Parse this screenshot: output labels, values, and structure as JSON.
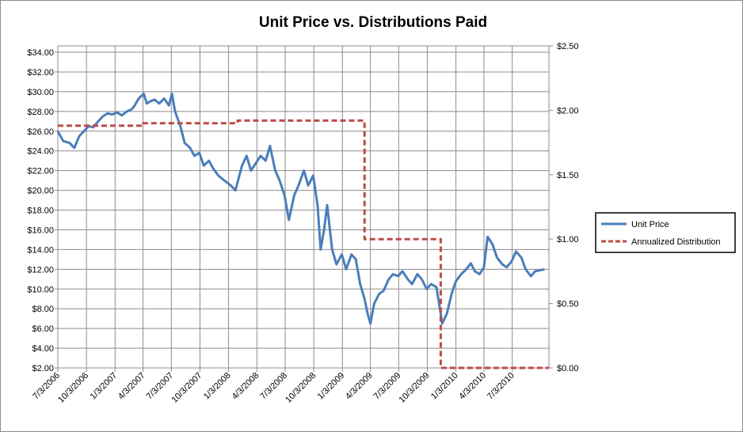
{
  "chart_data": {
    "type": "line",
    "title": "Unit Price vs. Distributions Paid",
    "xlabel": "",
    "ylabel": "",
    "y2label": "",
    "grid": true,
    "legend_position": "right",
    "x_ticks": [
      "7/3/2006",
      "10/3/2006",
      "1/3/2007",
      "4/3/2007",
      "7/3/2007",
      "10/3/2007",
      "1/3/2008",
      "4/3/2008",
      "7/3/2008",
      "10/3/2008",
      "1/3/2009",
      "4/3/2009",
      "7/3/2009",
      "10/3/2009",
      "1/3/2010",
      "4/3/2010",
      "7/3/2010"
    ],
    "x_range": [
      "7/3/2006",
      "10/29/2010"
    ],
    "y_left": {
      "min": 2,
      "max": 34,
      "step": 2,
      "ticks": [
        "$2.00",
        "$4.00",
        "$6.00",
        "$8.00",
        "$10.00",
        "$12.00",
        "$14.00",
        "$16.00",
        "$18.00",
        "$20.00",
        "$22.00",
        "$24.00",
        "$26.00",
        "$28.00",
        "$30.00",
        "$32.00",
        "$34.00"
      ]
    },
    "y_right": {
      "min": 0,
      "max": 2.5,
      "step": 0.5,
      "ticks": [
        "$0.00",
        "$0.50",
        "$1.00",
        "$1.50",
        "$2.00",
        "$2.50"
      ]
    },
    "series": [
      {
        "name": "Unit Price",
        "axis": "left",
        "color": "#4a7ebb",
        "style": "solid",
        "points": [
          [
            "7/3/2006",
            26.0
          ],
          [
            "7/20/2006",
            25.0
          ],
          [
            "8/10/2006",
            24.8
          ],
          [
            "8/25/2006",
            24.3
          ],
          [
            "9/10/2006",
            25.5
          ],
          [
            "9/25/2006",
            26.0
          ],
          [
            "10/10/2006",
            26.5
          ],
          [
            "10/25/2006",
            26.4
          ],
          [
            "11/10/2006",
            27.0
          ],
          [
            "11/25/2006",
            27.5
          ],
          [
            "12/10/2006",
            27.8
          ],
          [
            "12/25/2006",
            27.7
          ],
          [
            "1/10/2007",
            27.9
          ],
          [
            "1/25/2007",
            27.6
          ],
          [
            "2/10/2007",
            28.0
          ],
          [
            "2/25/2007",
            28.2
          ],
          [
            "3/5/2007",
            28.5
          ],
          [
            "3/20/2007",
            29.3
          ],
          [
            "4/5/2007",
            29.8
          ],
          [
            "4/15/2007",
            28.8
          ],
          [
            "4/25/2007",
            29.0
          ],
          [
            "5/10/2007",
            29.2
          ],
          [
            "5/25/2007",
            28.8
          ],
          [
            "6/10/2007",
            29.3
          ],
          [
            "6/25/2007",
            28.6
          ],
          [
            "7/5/2007",
            29.8
          ],
          [
            "7/15/2007",
            28.0
          ],
          [
            "8/1/2007",
            26.5
          ],
          [
            "8/15/2007",
            24.8
          ],
          [
            "9/1/2007",
            24.3
          ],
          [
            "9/15/2007",
            23.5
          ],
          [
            "10/1/2007",
            23.8
          ],
          [
            "10/15/2007",
            22.5
          ],
          [
            "11/1/2007",
            23.0
          ],
          [
            "11/15/2007",
            22.2
          ],
          [
            "12/1/2007",
            21.5
          ],
          [
            "12/20/2007",
            21.0
          ],
          [
            "1/10/2008",
            20.5
          ],
          [
            "1/25/2008",
            20.0
          ],
          [
            "2/15/2008",
            22.5
          ],
          [
            "3/1/2008",
            23.5
          ],
          [
            "3/15/2008",
            22.0
          ],
          [
            "4/1/2008",
            22.8
          ],
          [
            "4/15/2008",
            23.5
          ],
          [
            "5/1/2008",
            23.0
          ],
          [
            "5/15/2008",
            24.5
          ],
          [
            "6/1/2008",
            22.0
          ],
          [
            "6/15/2008",
            21.0
          ],
          [
            "7/1/2008",
            19.5
          ],
          [
            "7/15/2008",
            17.0
          ],
          [
            "8/1/2008",
            19.5
          ],
          [
            "8/15/2008",
            20.5
          ],
          [
            "9/1/2008",
            22.0
          ],
          [
            "9/15/2008",
            20.5
          ],
          [
            "10/1/2008",
            21.5
          ],
          [
            "10/15/2008",
            18.5
          ],
          [
            "10/25/2008",
            14.0
          ],
          [
            "11/5/2008",
            16.0
          ],
          [
            "11/15/2008",
            18.5
          ],
          [
            "12/1/2008",
            14.0
          ],
          [
            "12/15/2008",
            12.5
          ],
          [
            "1/1/2009",
            13.5
          ],
          [
            "1/15/2009",
            12.0
          ],
          [
            "2/1/2009",
            13.5
          ],
          [
            "2/15/2009",
            13.0
          ],
          [
            "3/1/2009",
            10.5
          ],
          [
            "3/15/2009",
            9.0
          ],
          [
            "3/25/2009",
            7.5
          ],
          [
            "4/3/2009",
            6.5
          ],
          [
            "4/15/2009",
            8.5
          ],
          [
            "5/1/2009",
            9.5
          ],
          [
            "5/15/2009",
            9.8
          ],
          [
            "6/1/2009",
            11.0
          ],
          [
            "6/15/2009",
            11.5
          ],
          [
            "7/1/2009",
            11.3
          ],
          [
            "7/15/2009",
            11.8
          ],
          [
            "8/1/2009",
            11.0
          ],
          [
            "8/15/2009",
            10.5
          ],
          [
            "9/1/2009",
            11.5
          ],
          [
            "9/15/2009",
            11.0
          ],
          [
            "10/1/2009",
            10.0
          ],
          [
            "10/15/2009",
            10.5
          ],
          [
            "11/1/2009",
            10.2
          ],
          [
            "11/10/2009",
            8.5
          ],
          [
            "11/20/2009",
            6.5
          ],
          [
            "12/5/2009",
            7.5
          ],
          [
            "12/20/2009",
            9.5
          ],
          [
            "1/3/2010",
            10.8
          ],
          [
            "1/20/2010",
            11.5
          ],
          [
            "2/5/2010",
            12.0
          ],
          [
            "2/20/2010",
            12.6
          ],
          [
            "3/5/2010",
            11.8
          ],
          [
            "3/20/2010",
            11.5
          ],
          [
            "4/3/2010",
            12.2
          ],
          [
            "4/15/2010",
            15.3
          ],
          [
            "5/1/2010",
            14.5
          ],
          [
            "5/15/2010",
            13.2
          ],
          [
            "6/1/2010",
            12.5
          ],
          [
            "6/15/2010",
            12.2
          ],
          [
            "7/1/2010",
            12.8
          ],
          [
            "7/15/2010",
            13.8
          ],
          [
            "8/1/2010",
            13.2
          ],
          [
            "8/15/2010",
            12.0
          ],
          [
            "9/1/2010",
            11.3
          ],
          [
            "9/15/2010",
            11.8
          ],
          [
            "10/1/2010",
            11.9
          ],
          [
            "10/15/2010",
            12.0
          ]
        ]
      },
      {
        "name": "Annualized Distribution",
        "axis": "right",
        "color": "#be4b48",
        "style": "dashed",
        "points": [
          [
            "7/3/2006",
            1.88
          ],
          [
            "4/3/2007",
            1.88
          ],
          [
            "4/3/2007",
            1.9
          ],
          [
            "2/1/2008",
            1.9
          ],
          [
            "2/1/2008",
            1.92
          ],
          [
            "3/15/2009",
            1.92
          ],
          [
            "3/15/2009",
            1.0
          ],
          [
            "11/15/2009",
            1.0
          ],
          [
            "11/15/2009",
            0.0
          ],
          [
            "10/29/2010",
            0.0
          ]
        ]
      }
    ]
  }
}
